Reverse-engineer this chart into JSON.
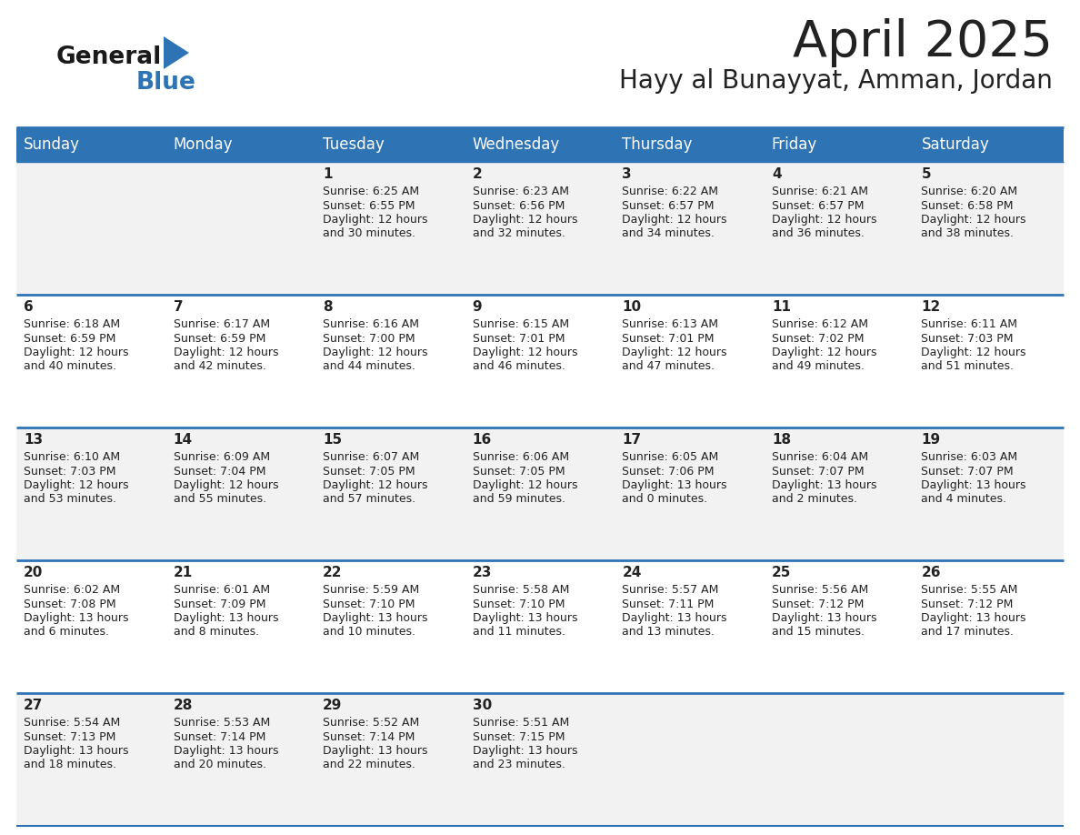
{
  "title": "April 2025",
  "subtitle": "Hayy al Bunayyat, Amman, Jordan",
  "days_of_week": [
    "Sunday",
    "Monday",
    "Tuesday",
    "Wednesday",
    "Thursday",
    "Friday",
    "Saturday"
  ],
  "header_bg": "#2E74B5",
  "header_text": "#FFFFFF",
  "cell_bg_odd": "#F2F2F2",
  "cell_bg_even": "#FFFFFF",
  "cell_border": "#2E74B5",
  "title_color": "#222222",
  "subtitle_color": "#222222",
  "text_color": "#222222",
  "logo_black": "#1a1a1a",
  "logo_blue": "#2E74B5",
  "calendar": [
    [
      {
        "day": null,
        "sunrise": null,
        "sunset": null,
        "daylight": null
      },
      {
        "day": null,
        "sunrise": null,
        "sunset": null,
        "daylight": null
      },
      {
        "day": 1,
        "sunrise": "6:25 AM",
        "sunset": "6:55 PM",
        "daylight": "12 hours\nand 30 minutes."
      },
      {
        "day": 2,
        "sunrise": "6:23 AM",
        "sunset": "6:56 PM",
        "daylight": "12 hours\nand 32 minutes."
      },
      {
        "day": 3,
        "sunrise": "6:22 AM",
        "sunset": "6:57 PM",
        "daylight": "12 hours\nand 34 minutes."
      },
      {
        "day": 4,
        "sunrise": "6:21 AM",
        "sunset": "6:57 PM",
        "daylight": "12 hours\nand 36 minutes."
      },
      {
        "day": 5,
        "sunrise": "6:20 AM",
        "sunset": "6:58 PM",
        "daylight": "12 hours\nand 38 minutes."
      }
    ],
    [
      {
        "day": 6,
        "sunrise": "6:18 AM",
        "sunset": "6:59 PM",
        "daylight": "12 hours\nand 40 minutes."
      },
      {
        "day": 7,
        "sunrise": "6:17 AM",
        "sunset": "6:59 PM",
        "daylight": "12 hours\nand 42 minutes."
      },
      {
        "day": 8,
        "sunrise": "6:16 AM",
        "sunset": "7:00 PM",
        "daylight": "12 hours\nand 44 minutes."
      },
      {
        "day": 9,
        "sunrise": "6:15 AM",
        "sunset": "7:01 PM",
        "daylight": "12 hours\nand 46 minutes."
      },
      {
        "day": 10,
        "sunrise": "6:13 AM",
        "sunset": "7:01 PM",
        "daylight": "12 hours\nand 47 minutes."
      },
      {
        "day": 11,
        "sunrise": "6:12 AM",
        "sunset": "7:02 PM",
        "daylight": "12 hours\nand 49 minutes."
      },
      {
        "day": 12,
        "sunrise": "6:11 AM",
        "sunset": "7:03 PM",
        "daylight": "12 hours\nand 51 minutes."
      }
    ],
    [
      {
        "day": 13,
        "sunrise": "6:10 AM",
        "sunset": "7:03 PM",
        "daylight": "12 hours\nand 53 minutes."
      },
      {
        "day": 14,
        "sunrise": "6:09 AM",
        "sunset": "7:04 PM",
        "daylight": "12 hours\nand 55 minutes."
      },
      {
        "day": 15,
        "sunrise": "6:07 AM",
        "sunset": "7:05 PM",
        "daylight": "12 hours\nand 57 minutes."
      },
      {
        "day": 16,
        "sunrise": "6:06 AM",
        "sunset": "7:05 PM",
        "daylight": "12 hours\nand 59 minutes."
      },
      {
        "day": 17,
        "sunrise": "6:05 AM",
        "sunset": "7:06 PM",
        "daylight": "13 hours\nand 0 minutes."
      },
      {
        "day": 18,
        "sunrise": "6:04 AM",
        "sunset": "7:07 PM",
        "daylight": "13 hours\nand 2 minutes."
      },
      {
        "day": 19,
        "sunrise": "6:03 AM",
        "sunset": "7:07 PM",
        "daylight": "13 hours\nand 4 minutes."
      }
    ],
    [
      {
        "day": 20,
        "sunrise": "6:02 AM",
        "sunset": "7:08 PM",
        "daylight": "13 hours\nand 6 minutes."
      },
      {
        "day": 21,
        "sunrise": "6:01 AM",
        "sunset": "7:09 PM",
        "daylight": "13 hours\nand 8 minutes."
      },
      {
        "day": 22,
        "sunrise": "5:59 AM",
        "sunset": "7:10 PM",
        "daylight": "13 hours\nand 10 minutes."
      },
      {
        "day": 23,
        "sunrise": "5:58 AM",
        "sunset": "7:10 PM",
        "daylight": "13 hours\nand 11 minutes."
      },
      {
        "day": 24,
        "sunrise": "5:57 AM",
        "sunset": "7:11 PM",
        "daylight": "13 hours\nand 13 minutes."
      },
      {
        "day": 25,
        "sunrise": "5:56 AM",
        "sunset": "7:12 PM",
        "daylight": "13 hours\nand 15 minutes."
      },
      {
        "day": 26,
        "sunrise": "5:55 AM",
        "sunset": "7:12 PM",
        "daylight": "13 hours\nand 17 minutes."
      }
    ],
    [
      {
        "day": 27,
        "sunrise": "5:54 AM",
        "sunset": "7:13 PM",
        "daylight": "13 hours\nand 18 minutes."
      },
      {
        "day": 28,
        "sunrise": "5:53 AM",
        "sunset": "7:14 PM",
        "daylight": "13 hours\nand 20 minutes."
      },
      {
        "day": 29,
        "sunrise": "5:52 AM",
        "sunset": "7:14 PM",
        "daylight": "13 hours\nand 22 minutes."
      },
      {
        "day": 30,
        "sunrise": "5:51 AM",
        "sunset": "7:15 PM",
        "daylight": "13 hours\nand 23 minutes."
      },
      {
        "day": null,
        "sunrise": null,
        "sunset": null,
        "daylight": null
      },
      {
        "day": null,
        "sunrise": null,
        "sunset": null,
        "daylight": null
      },
      {
        "day": null,
        "sunrise": null,
        "sunset": null,
        "daylight": null
      }
    ]
  ]
}
